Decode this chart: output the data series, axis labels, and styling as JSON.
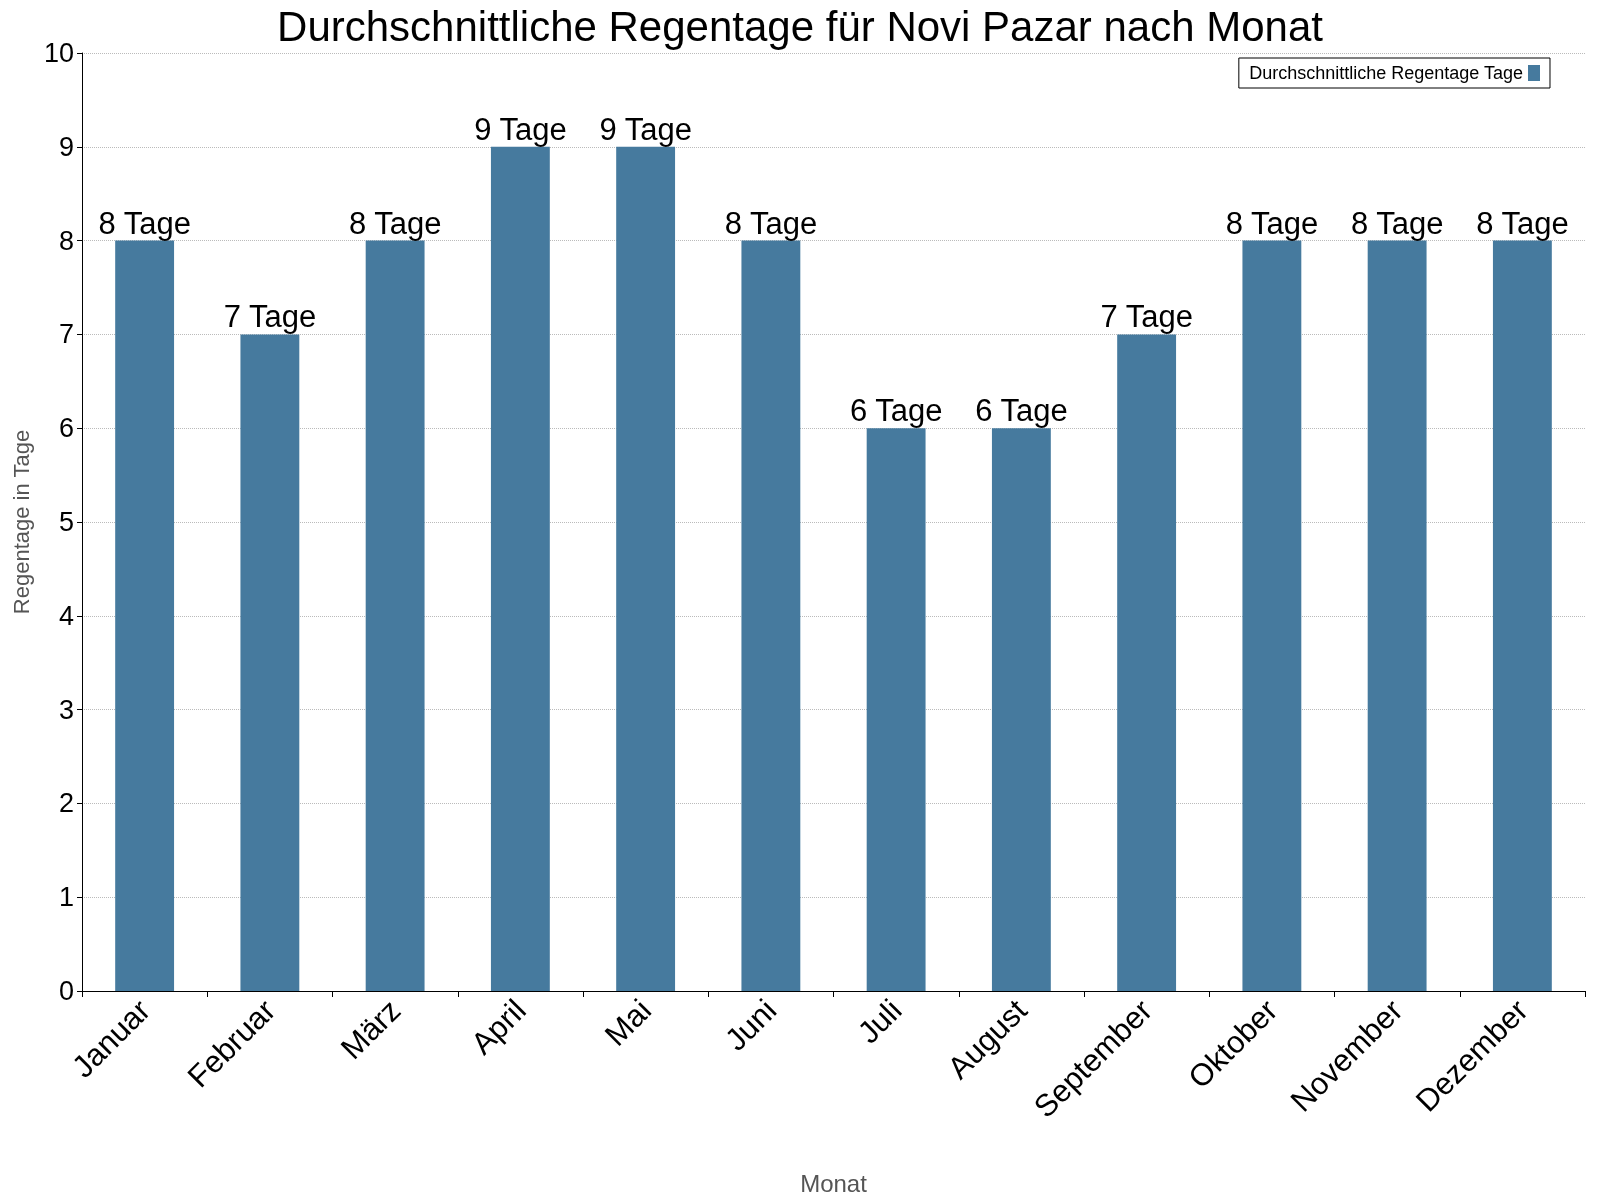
{
  "chart_data": {
    "type": "bar",
    "title": "Durchschnittliche Regentage für Novi Pazar nach Monat",
    "xlabel": "Monat",
    "ylabel": "Regentage in Tage",
    "categories": [
      "Januar",
      "Februar",
      "März",
      "April",
      "Mai",
      "Juni",
      "Juli",
      "August",
      "September",
      "Oktober",
      "November",
      "Dezember"
    ],
    "series": [
      {
        "name": "Durchschnittliche Regentage Tage",
        "color": "#467a9e",
        "values": [
          8,
          7,
          8,
          9,
          9,
          8,
          6,
          6,
          7,
          8,
          8,
          8
        ],
        "value_labels": [
          "8 Tage",
          "7 Tage",
          "8 Tage",
          "9 Tage",
          "9 Tage",
          "8 Tage",
          "6 Tage",
          "6 Tage",
          "7 Tage",
          "8 Tage",
          "8 Tage",
          "8 Tage"
        ]
      }
    ],
    "ylim": [
      0,
      10
    ],
    "yticks": [
      0,
      1,
      2,
      3,
      4,
      5,
      6,
      7,
      8,
      9,
      10
    ],
    "grid": "y",
    "legend": "top right"
  }
}
